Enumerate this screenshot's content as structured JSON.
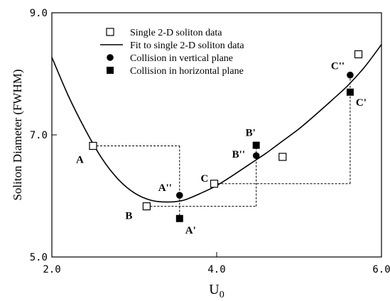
{
  "chart_data": {
    "type": "scatter",
    "title": "",
    "xlabel": "U",
    "xlabel_subscript": "0",
    "ylabel": "Soliton Diameter (FWHM)",
    "xlim": [
      2.0,
      6.0
    ],
    "ylim": [
      5.0,
      9.0
    ],
    "xticks": [
      "2.0",
      "4.0",
      "6.0"
    ],
    "yticks": [
      "5.0",
      "7.0",
      "9.0"
    ],
    "grid": false,
    "legend_position": "top-center",
    "legend": [
      {
        "label": "Single 2-D soliton data",
        "marker": "open-square"
      },
      {
        "label": "Fit to single 2-D soliton data",
        "marker": "line"
      },
      {
        "label": "Collision in vertical plane",
        "marker": "filled-circle"
      },
      {
        "label": "Collision in horizontal plane",
        "marker": "filled-square"
      }
    ],
    "series": [
      {
        "name": "Single 2-D soliton data",
        "marker": "open-square",
        "points": [
          {
            "x": 2.5,
            "y": 6.82
          },
          {
            "x": 3.15,
            "y": 5.83
          },
          {
            "x": 3.97,
            "y": 6.2
          },
          {
            "x": 4.8,
            "y": 6.64
          },
          {
            "x": 5.72,
            "y": 8.32
          }
        ]
      },
      {
        "name": "Collision in vertical plane",
        "marker": "filled-circle",
        "points": [
          {
            "x": 3.55,
            "y": 6.01
          },
          {
            "x": 4.48,
            "y": 6.66
          },
          {
            "x": 5.62,
            "y": 7.98
          }
        ]
      },
      {
        "name": "Collision in horizontal plane",
        "marker": "filled-square",
        "points": [
          {
            "x": 3.55,
            "y": 5.63
          },
          {
            "x": 4.48,
            "y": 6.83
          },
          {
            "x": 5.62,
            "y": 7.7
          }
        ]
      },
      {
        "name": "Fit to single 2-D soliton data",
        "type": "line",
        "x": [
          2.0,
          2.2,
          2.4,
          2.6,
          2.8,
          3.0,
          3.2,
          3.4,
          3.6,
          3.8,
          4.0,
          4.2,
          4.4,
          4.6,
          4.8,
          5.0,
          5.2,
          5.4,
          5.6,
          5.8,
          6.0
        ],
        "y": [
          8.27,
          7.64,
          7.1,
          6.63,
          6.28,
          6.05,
          5.93,
          5.9,
          5.93,
          6.04,
          6.17,
          6.34,
          6.52,
          6.7,
          6.9,
          7.1,
          7.33,
          7.57,
          7.82,
          8.12,
          8.48
        ]
      }
    ],
    "connectors": [
      {
        "from": "A",
        "corner": {
          "x": 3.55,
          "y": 6.82
        },
        "to": "A''"
      },
      {
        "from": "B",
        "corner": {
          "x": 4.48,
          "y": 5.83
        },
        "to": "B''"
      },
      {
        "from": "C",
        "corner": {
          "x": 5.62,
          "y": 6.2
        },
        "to": "C''"
      }
    ],
    "annotations": [
      {
        "text": "A",
        "x": 2.5,
        "y": 6.82
      },
      {
        "text": "B",
        "x": 3.15,
        "y": 5.83
      },
      {
        "text": "C",
        "x": 3.97,
        "y": 6.2
      },
      {
        "text": "A''",
        "x": 3.55,
        "y": 6.01
      },
      {
        "text": "A'",
        "x": 3.55,
        "y": 5.63
      },
      {
        "text": "B'",
        "x": 4.48,
        "y": 6.83
      },
      {
        "text": "B''",
        "x": 4.48,
        "y": 6.66
      },
      {
        "text": "C''",
        "x": 5.62,
        "y": 7.98
      },
      {
        "text": "C'",
        "x": 5.62,
        "y": 7.7
      }
    ]
  }
}
